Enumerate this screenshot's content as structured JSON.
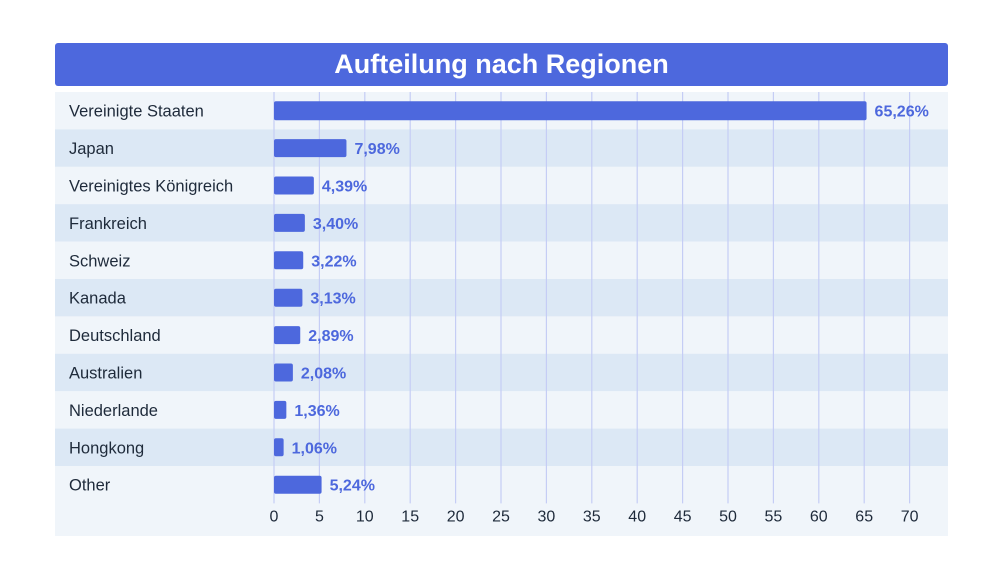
{
  "chart_data": {
    "type": "bar",
    "orientation": "horizontal",
    "title": "Aufteilung nach Regionen",
    "categories": [
      "Vereinigte Staaten",
      "Japan",
      "Vereinigtes Königreich",
      "Frankreich",
      "Schweiz",
      "Kanada",
      "Deutschland",
      "Australien",
      "Niederlande",
      "Hongkong",
      "Other"
    ],
    "values": [
      65.26,
      7.98,
      4.39,
      3.4,
      3.22,
      3.13,
      2.89,
      2.08,
      1.36,
      1.06,
      5.24
    ],
    "value_labels": [
      "65,26%",
      "7,98%",
      "4,39%",
      "3,40%",
      "3,22%",
      "3,13%",
      "2,89%",
      "2,08%",
      "1,36%",
      "1,06%",
      "5,24%"
    ],
    "xticks": [
      0,
      5,
      10,
      15,
      20,
      25,
      30,
      35,
      40,
      45,
      50,
      55,
      60,
      65,
      70
    ],
    "xlim": [
      0,
      70
    ],
    "xlabel": "",
    "ylabel": "",
    "grid": true,
    "colors": {
      "bar": "#4d68dd",
      "title_bg": "#4d68dd",
      "row_even": "#f0f5fa",
      "row_odd": "#dce8f5",
      "grid": "#c5cdf5",
      "value_text": "#4d68dd",
      "label_text": "#1e2a3a"
    }
  }
}
